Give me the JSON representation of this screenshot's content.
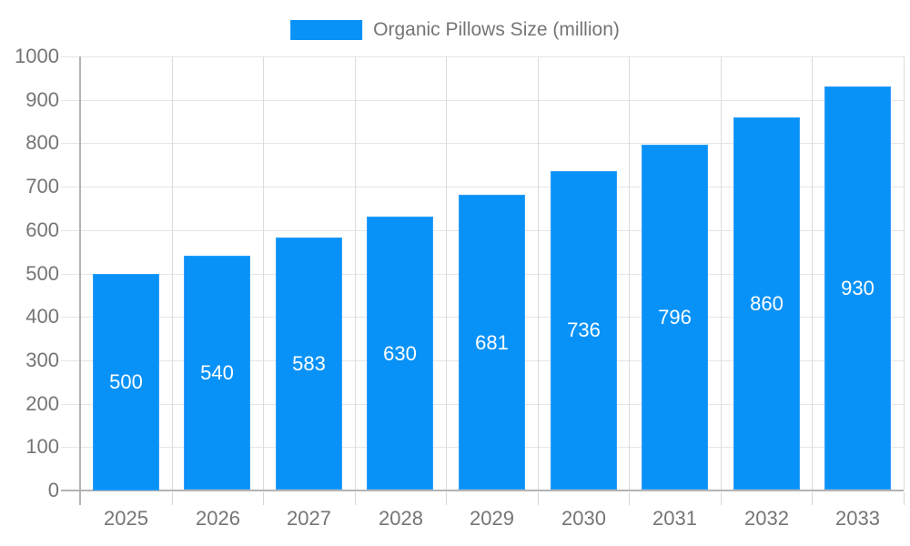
{
  "chart_data": {
    "type": "bar",
    "title": "Organic Pillows Size (million)",
    "legend_position": "top-center",
    "categories": [
      "2025",
      "2026",
      "2027",
      "2028",
      "2029",
      "2030",
      "2031",
      "2032",
      "2033"
    ],
    "series": [
      {
        "name": "Organic Pillows Size (million)",
        "values": [
          500,
          540,
          583,
          630,
          681,
          736,
          796,
          860,
          930
        ]
      }
    ],
    "bar_value_labels_visible": true,
    "xlabel": "",
    "ylabel": "",
    "ylim": [
      0,
      1000
    ],
    "ytick_step": 100,
    "yticks": [
      0,
      100,
      200,
      300,
      400,
      500,
      600,
      700,
      800,
      900,
      1000
    ],
    "grid": true,
    "colors": {
      "bar": "#0892f8",
      "bar_border": "#2f9ef9",
      "bar_label_text": "#ffffff",
      "axis_text": "#757575",
      "grid_horizontal": "#e6e6e6",
      "grid_vertical": "#dcdcdc",
      "axis_line": "#b3b3b3",
      "category_tick": "#d6d6d6",
      "background": "#ffffff"
    }
  }
}
